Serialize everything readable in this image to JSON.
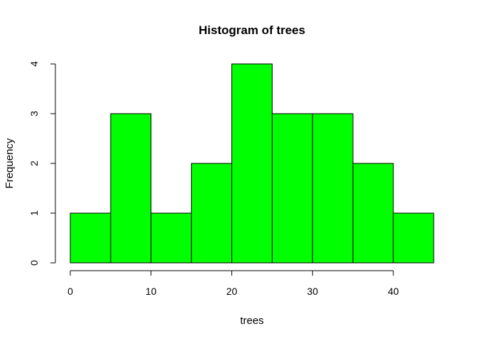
{
  "chart_data": {
    "type": "bar",
    "title": "Histogram of trees",
    "xlabel": "trees",
    "ylabel": "Frequency",
    "bins": [
      {
        "start": 0,
        "end": 5,
        "count": 1
      },
      {
        "start": 5,
        "end": 10,
        "count": 3
      },
      {
        "start": 10,
        "end": 15,
        "count": 1
      },
      {
        "start": 15,
        "end": 20,
        "count": 2
      },
      {
        "start": 20,
        "end": 25,
        "count": 4
      },
      {
        "start": 25,
        "end": 30,
        "count": 3
      },
      {
        "start": 30,
        "end": 35,
        "count": 3
      },
      {
        "start": 35,
        "end": 40,
        "count": 2
      },
      {
        "start": 40,
        "end": 45,
        "count": 1
      }
    ],
    "xticks": [
      0,
      10,
      20,
      30,
      40
    ],
    "yticks": [
      0,
      1,
      2,
      3,
      4
    ],
    "xlim": [
      0,
      45
    ],
    "ylim": [
      0,
      4
    ],
    "bar_color": "#00ff00",
    "grid": false
  }
}
